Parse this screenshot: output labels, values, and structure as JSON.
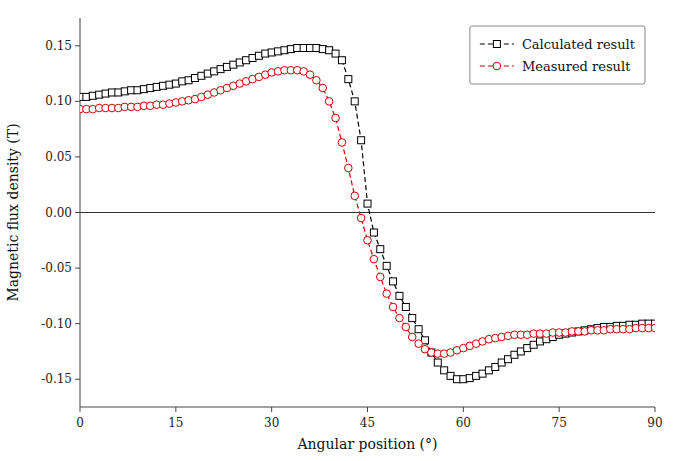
{
  "chart_data": {
    "type": "line",
    "x": [
      0,
      1,
      2,
      3,
      4,
      5,
      6,
      7,
      8,
      9,
      10,
      11,
      12,
      13,
      14,
      15,
      16,
      17,
      18,
      19,
      20,
      21,
      22,
      23,
      24,
      25,
      26,
      27,
      28,
      29,
      30,
      31,
      32,
      33,
      34,
      35,
      36,
      37,
      38,
      39,
      40,
      41,
      42,
      43,
      44,
      45,
      46,
      47,
      48,
      49,
      50,
      51,
      52,
      53,
      54,
      55,
      56,
      57,
      58,
      59,
      60,
      61,
      62,
      63,
      64,
      65,
      66,
      67,
      68,
      69,
      70,
      71,
      72,
      73,
      74,
      75,
      76,
      77,
      78,
      79,
      80,
      81,
      82,
      83,
      84,
      85,
      86,
      87,
      88,
      89,
      90
    ],
    "series": [
      {
        "name": "Calculated result",
        "color": "#000000",
        "marker": "square",
        "line_style": "dashed",
        "values": [
          0.104,
          0.104,
          0.105,
          0.106,
          0.107,
          0.108,
          0.108,
          0.109,
          0.11,
          0.11,
          0.111,
          0.112,
          0.113,
          0.114,
          0.115,
          0.116,
          0.118,
          0.119,
          0.121,
          0.123,
          0.125,
          0.127,
          0.129,
          0.131,
          0.133,
          0.135,
          0.137,
          0.139,
          0.141,
          0.143,
          0.144,
          0.145,
          0.146,
          0.147,
          0.148,
          0.148,
          0.148,
          0.148,
          0.147,
          0.146,
          0.143,
          0.137,
          0.12,
          0.1,
          0.065,
          0.008,
          -0.018,
          -0.033,
          -0.048,
          -0.062,
          -0.075,
          -0.085,
          -0.095,
          -0.105,
          -0.115,
          -0.126,
          -0.135,
          -0.142,
          -0.147,
          -0.15,
          -0.15,
          -0.149,
          -0.147,
          -0.145,
          -0.142,
          -0.139,
          -0.135,
          -0.132,
          -0.128,
          -0.125,
          -0.122,
          -0.119,
          -0.116,
          -0.114,
          -0.112,
          -0.11,
          -0.109,
          -0.108,
          -0.107,
          -0.106,
          -0.105,
          -0.104,
          -0.103,
          -0.103,
          -0.102,
          -0.102,
          -0.101,
          -0.101,
          -0.1,
          -0.1,
          -0.1
        ]
      },
      {
        "name": "Measured result",
        "color": "#cc0000",
        "marker": "circle",
        "line_style": "dashed",
        "values": [
          0.093,
          0.093,
          0.093,
          0.094,
          0.094,
          0.094,
          0.094,
          0.095,
          0.095,
          0.095,
          0.096,
          0.096,
          0.097,
          0.097,
          0.098,
          0.099,
          0.1,
          0.101,
          0.102,
          0.104,
          0.106,
          0.108,
          0.11,
          0.112,
          0.114,
          0.116,
          0.118,
          0.12,
          0.122,
          0.124,
          0.126,
          0.127,
          0.128,
          0.128,
          0.128,
          0.127,
          0.124,
          0.119,
          0.112,
          0.1,
          0.085,
          0.063,
          0.04,
          0.015,
          -0.005,
          -0.025,
          -0.042,
          -0.058,
          -0.073,
          -0.085,
          -0.095,
          -0.103,
          -0.112,
          -0.118,
          -0.123,
          -0.126,
          -0.127,
          -0.127,
          -0.126,
          -0.124,
          -0.122,
          -0.12,
          -0.118,
          -0.116,
          -0.114,
          -0.113,
          -0.112,
          -0.111,
          -0.11,
          -0.11,
          -0.11,
          -0.109,
          -0.109,
          -0.109,
          -0.108,
          -0.108,
          -0.108,
          -0.107,
          -0.107,
          -0.107,
          -0.106,
          -0.106,
          -0.106,
          -0.105,
          -0.105,
          -0.105,
          -0.105,
          -0.104,
          -0.104,
          -0.104,
          -0.104
        ]
      }
    ],
    "xlabel": "Angular position (°)",
    "ylabel": "Magnetic flux density (T)",
    "xlim": [
      0,
      90
    ],
    "ylim": [
      -0.175,
      0.175
    ],
    "xticks": [
      0,
      15,
      30,
      45,
      60,
      75,
      90
    ],
    "yticks": [
      -0.15,
      {
        "value": -0.1,
        "label": "-0.10"
      },
      -0.05,
      {
        "value": 0,
        "label": "0.00"
      },
      0.05,
      {
        "value": 0.1,
        "label": "0.10"
      },
      0.15
    ],
    "grid": false,
    "legend": "upper right"
  }
}
